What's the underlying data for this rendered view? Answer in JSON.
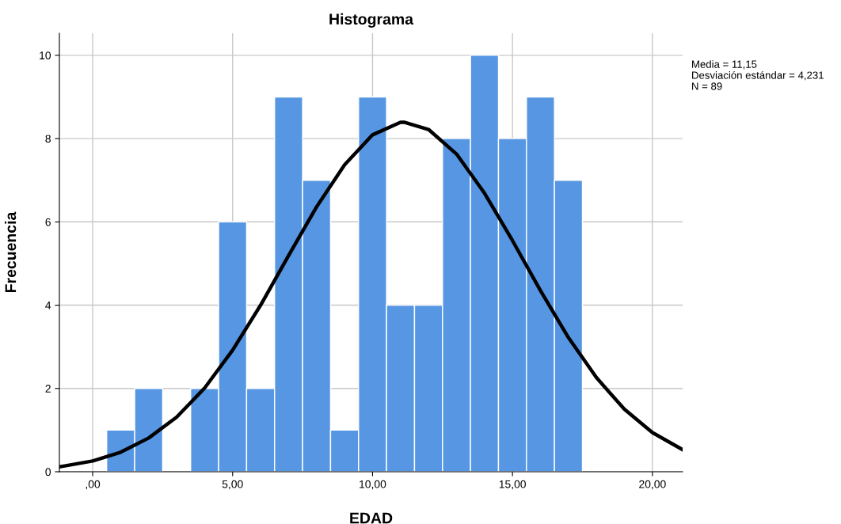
{
  "chart_data": {
    "type": "histogram",
    "title": "Histograma",
    "xlabel": "EDAD",
    "ylabel": "Frecuencia",
    "bins": [
      0.5,
      1.5,
      2.5,
      3.5,
      4.5,
      5.5,
      6.5,
      7.5,
      8.5,
      9.5,
      10.5,
      11.5,
      12.5,
      13.5,
      14.5,
      15.5,
      16.5,
      17.5
    ],
    "values": [
      1,
      2,
      0,
      2,
      6,
      2,
      9,
      7,
      1,
      9,
      4,
      4,
      8,
      10,
      8,
      9,
      7
    ],
    "color": "#5696e3",
    "series": [
      {
        "type": "line",
        "color": "#000000",
        "x": [
          -1.19,
          -1,
          0,
          1,
          2,
          3,
          4,
          5,
          6,
          7,
          8,
          9,
          10,
          11,
          11.15,
          12,
          13,
          14,
          15,
          16,
          17,
          18,
          19,
          20,
          21,
          21.08
        ],
        "values": [
          0.12,
          0.14,
          0.26,
          0.47,
          0.81,
          1.31,
          2.01,
          2.92,
          4.0,
          5.19,
          6.36,
          7.37,
          8.09,
          8.39,
          8.39,
          8.22,
          7.63,
          6.69,
          5.55,
          4.35,
          3.22,
          2.26,
          1.5,
          0.94,
          0.56,
          0.53
        ]
      }
    ],
    "xlim": [
      -1.19,
      21.08
    ],
    "ylim": [
      0,
      10.53
    ],
    "xticks": [
      {
        "value": 0,
        "label": ",00"
      },
      {
        "value": 5,
        "label": "5,00"
      },
      {
        "value": 10,
        "label": "10,00"
      },
      {
        "value": 15,
        "label": "15,00"
      },
      {
        "value": 20,
        "label": "20,00"
      }
    ],
    "yticks": [
      0,
      2,
      4,
      6,
      8,
      10
    ],
    "grid": true,
    "marker": "none",
    "line_style": "solid",
    "annotations": [
      "Media = 11,15",
      "Desviación estándar = 4,231",
      "N = 89"
    ]
  }
}
